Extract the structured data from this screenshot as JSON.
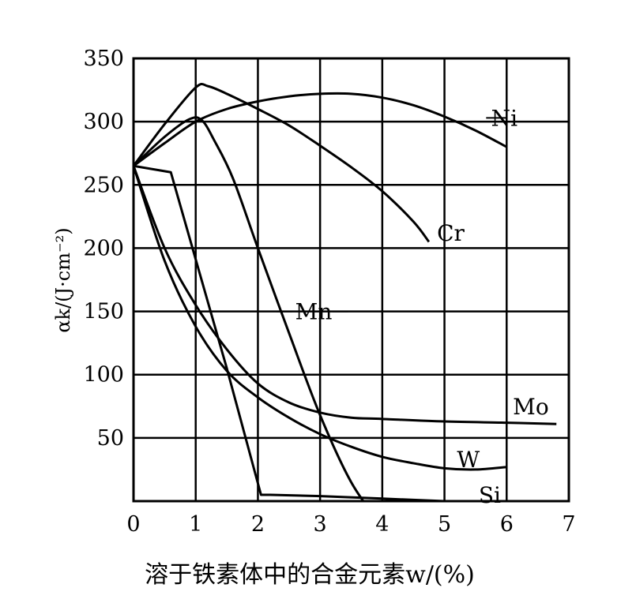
{
  "chart_data": {
    "type": "line",
    "xlabel": "溶于铁素体中的合金元素w/(%)",
    "ylabel": "αk/(J·cm⁻²)",
    "xlim": [
      0,
      7
    ],
    "ylim": [
      0,
      350
    ],
    "x_ticks": [
      "0",
      "1",
      "2",
      "3",
      "4",
      "5",
      "6",
      "7"
    ],
    "y_ticks": [
      "50",
      "100",
      "150",
      "200",
      "250",
      "300",
      "350"
    ],
    "grid": true,
    "series": [
      {
        "name": "Ni",
        "x": [
          0,
          0.5,
          1,
          1.5,
          2,
          2.5,
          3,
          3.5,
          4,
          4.5,
          5,
          5.5,
          6
        ],
        "y": [
          265,
          283,
          300,
          310,
          316,
          320,
          322,
          322,
          319,
          313,
          304,
          293,
          280
        ]
      },
      {
        "name": "Cr",
        "x": [
          0,
          0.5,
          1,
          1.2,
          1.5,
          2,
          2.5,
          3,
          3.5,
          4,
          4.5,
          4.75
        ],
        "y": [
          265,
          298,
          327,
          328,
          322,
          310,
          297,
          281,
          264,
          245,
          221,
          205
        ]
      },
      {
        "name": "Mn",
        "x": [
          0,
          0.5,
          0.9,
          1.1,
          1.3,
          1.6,
          2,
          2.5,
          3,
          3.5,
          4,
          4.2
        ],
        "y": [
          265,
          288,
          302,
          301,
          285,
          255,
          200,
          133,
          68,
          15,
          -20,
          -35
        ]
      },
      {
        "name": "Mo",
        "x": [
          0,
          0.5,
          1,
          1.5,
          2,
          2.5,
          3,
          3.5,
          4,
          5,
          6,
          6.8
        ],
        "y": [
          265,
          200,
          155,
          120,
          93,
          78,
          70,
          66,
          65,
          63,
          62,
          61
        ]
      },
      {
        "name": "W",
        "x": [
          0,
          0.5,
          1,
          1.5,
          2,
          2.5,
          3,
          3.5,
          4,
          4.5,
          5,
          5.5,
          6
        ],
        "y": [
          265,
          190,
          138,
          103,
          82,
          66,
          53,
          43,
          35,
          30,
          26,
          25,
          27
        ]
      },
      {
        "name": "Si",
        "x": [
          0,
          0.6,
          1.5,
          2.05,
          2.2,
          3,
          4,
          5,
          5.4
        ],
        "y": [
          265,
          260,
          105,
          5,
          5,
          4,
          2,
          0,
          0
        ]
      }
    ],
    "labels": {
      "Ni": {
        "x": 5.75,
        "y": 303
      },
      "Cr": {
        "x": 4.88,
        "y": 212
      },
      "Mn": {
        "x": 2.6,
        "y": 150
      },
      "Mo": {
        "x": 6.1,
        "y": 75
      },
      "W": {
        "x": 5.2,
        "y": 33
      },
      "Si": {
        "x": 5.55,
        "y": 5
      }
    },
    "label_leaders": {
      "Ni": [
        [
          5.67,
          303
        ],
        [
          6.0,
          303
        ]
      ],
      "Mn": [
        [
          2.3,
          150
        ],
        [
          2.55,
          150
        ],
        [
          3.2,
          150
        ],
        [
          3.45,
          150
        ]
      ]
    }
  }
}
